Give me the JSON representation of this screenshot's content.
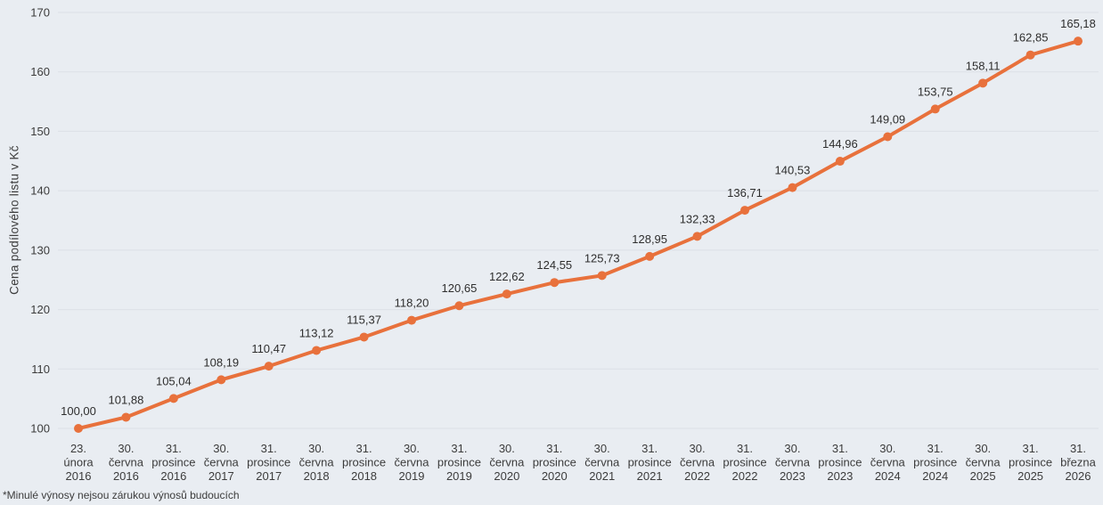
{
  "chart_data": {
    "type": "line",
    "title": "",
    "xlabel": "",
    "ylabel": "Cena podílového listu v Kč",
    "footnote": "*Minulé výnosy nejsou zárukou výnosů budoucích",
    "ylim": [
      100,
      170
    ],
    "y_ticks": [
      100,
      110,
      120,
      130,
      140,
      150,
      160,
      170
    ],
    "grid": true,
    "legend": "none",
    "colors": {
      "background": "#E9EDF2",
      "gridline": "#DCE0E6",
      "line": "#E8713C",
      "marker": "#E8713C",
      "data_label": "#2E2E2E",
      "tick_label": "#3C3C3C"
    },
    "categories": [
      "23. února 2016",
      "30. června 2016",
      "31. prosince 2016",
      "30. června 2017",
      "31. prosince 2017",
      "30. června 2018",
      "31. prosince 2018",
      "30. června 2019",
      "31. prosince 2019",
      "30. června 2020",
      "31. prosince 2020",
      "30. června 2021",
      "31. prosince 2021",
      "30. června 2022",
      "31. prosince 2022",
      "30. června 2023",
      "31. prosince 2023",
      "30. června 2024",
      "31. prosince 2024",
      "30. června 2025",
      "31. prosince 2025",
      "31. března 2026"
    ],
    "category_lines": [
      [
        "23.",
        "února",
        "2016"
      ],
      [
        "30.",
        "června",
        "2016"
      ],
      [
        "31.",
        "prosince",
        "2016"
      ],
      [
        "30.",
        "června",
        "2017"
      ],
      [
        "31.",
        "prosince",
        "2017"
      ],
      [
        "30.",
        "června",
        "2018"
      ],
      [
        "31.",
        "prosince",
        "2018"
      ],
      [
        "30.",
        "června",
        "2019"
      ],
      [
        "31.",
        "prosince",
        "2019"
      ],
      [
        "30.",
        "června",
        "2020"
      ],
      [
        "31.",
        "prosince",
        "2020"
      ],
      [
        "30.",
        "června",
        "2021"
      ],
      [
        "31.",
        "prosince",
        "2021"
      ],
      [
        "30.",
        "června",
        "2022"
      ],
      [
        "31.",
        "prosince",
        "2022"
      ],
      [
        "30.",
        "června",
        "2023"
      ],
      [
        "31.",
        "prosince",
        "2023"
      ],
      [
        "30.",
        "června",
        "2024"
      ],
      [
        "31.",
        "prosince",
        "2024"
      ],
      [
        "30.",
        "června",
        "2025"
      ],
      [
        "31.",
        "prosince",
        "2025"
      ],
      [
        "31.",
        "března",
        "2026"
      ]
    ],
    "values": [
      100.0,
      101.88,
      105.04,
      108.19,
      110.47,
      113.12,
      115.37,
      118.2,
      120.65,
      122.62,
      124.55,
      125.73,
      128.95,
      132.33,
      136.71,
      140.53,
      144.96,
      149.09,
      153.75,
      158.11,
      162.85,
      165.18
    ],
    "value_labels": [
      "100,00",
      "101,88",
      "105,04",
      "108,19",
      "110,47",
      "113,12",
      "115,37",
      "118,20",
      "120,65",
      "122,62",
      "124,55",
      "125,73",
      "128,95",
      "132,33",
      "136,71",
      "140,53",
      "144,96",
      "149,09",
      "153,75",
      "158,11",
      "162,85",
      "165,18"
    ]
  }
}
